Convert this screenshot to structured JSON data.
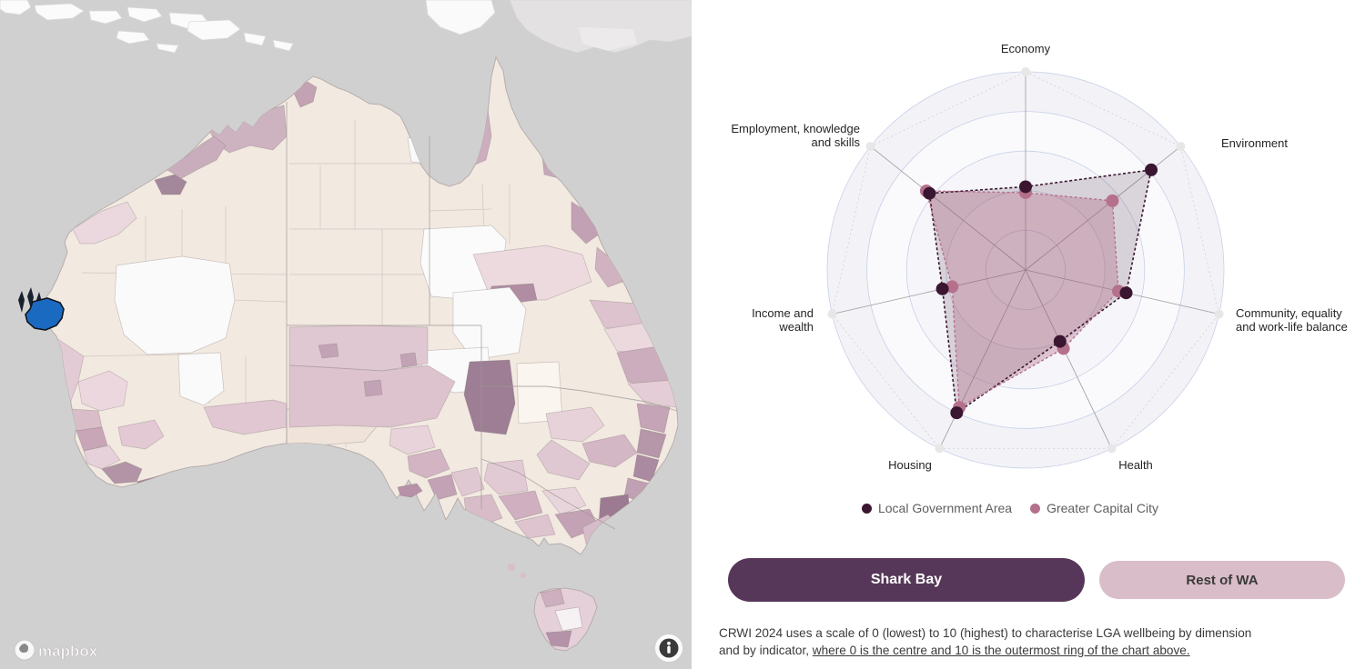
{
  "map": {
    "attribution": "mapbox",
    "selected_region_color": "#1b6ac1",
    "sea_color": "#d1d0d0",
    "land_base_color": "#f2e9e1"
  },
  "chart_data": {
    "type": "radar",
    "scale_min": 0,
    "scale_max": 10,
    "rings": 5,
    "axes": [
      "Economy",
      "Environment",
      "Community, equality\nand work-life balance",
      "Health",
      "Housing",
      "Income and\nwealth",
      "Employment, knowledge\nand skills"
    ],
    "series": [
      {
        "name": "Local Government Area",
        "color": "#3a1630",
        "fill": "rgba(58,22,48,0.16)",
        "values": [
          4.2,
          8.1,
          5.2,
          4.0,
          8.0,
          4.3,
          6.2
        ]
      },
      {
        "name": "Greater Capital City",
        "color": "#b5708c",
        "fill": "rgba(181,112,140,0.38)",
        "values": [
          3.9,
          5.6,
          4.8,
          4.4,
          7.7,
          3.8,
          6.4
        ]
      }
    ],
    "style": {
      "ring_stroke": "#c7d0e8",
      "ring_fills": [
        "#f3f3f7",
        "#fafafc",
        "#f6f6fa",
        "#fbfbfd",
        "#fdfdff"
      ],
      "axis_color": "#9b9b9b",
      "endpoint_color": "#e7e7e7",
      "web_color": "#d8d8dc"
    },
    "legend_position": "bottom"
  },
  "buttons": [
    {
      "label": "Shark Bay",
      "bg": "#573759",
      "fg": "#ffffff"
    },
    {
      "label": "Rest of WA",
      "bg": "#d9bdc8",
      "fg": "#3a3a3a"
    }
  ],
  "footer": {
    "line1": "CRWI 2024 uses a scale of 0 (lowest) to 10 (highest) to characterise LGA wellbeing by dimension",
    "line2_prefix": "and by indicator, ",
    "line2_underlined": "where 0 is the centre and 10 is the outermost ring of the chart above."
  }
}
